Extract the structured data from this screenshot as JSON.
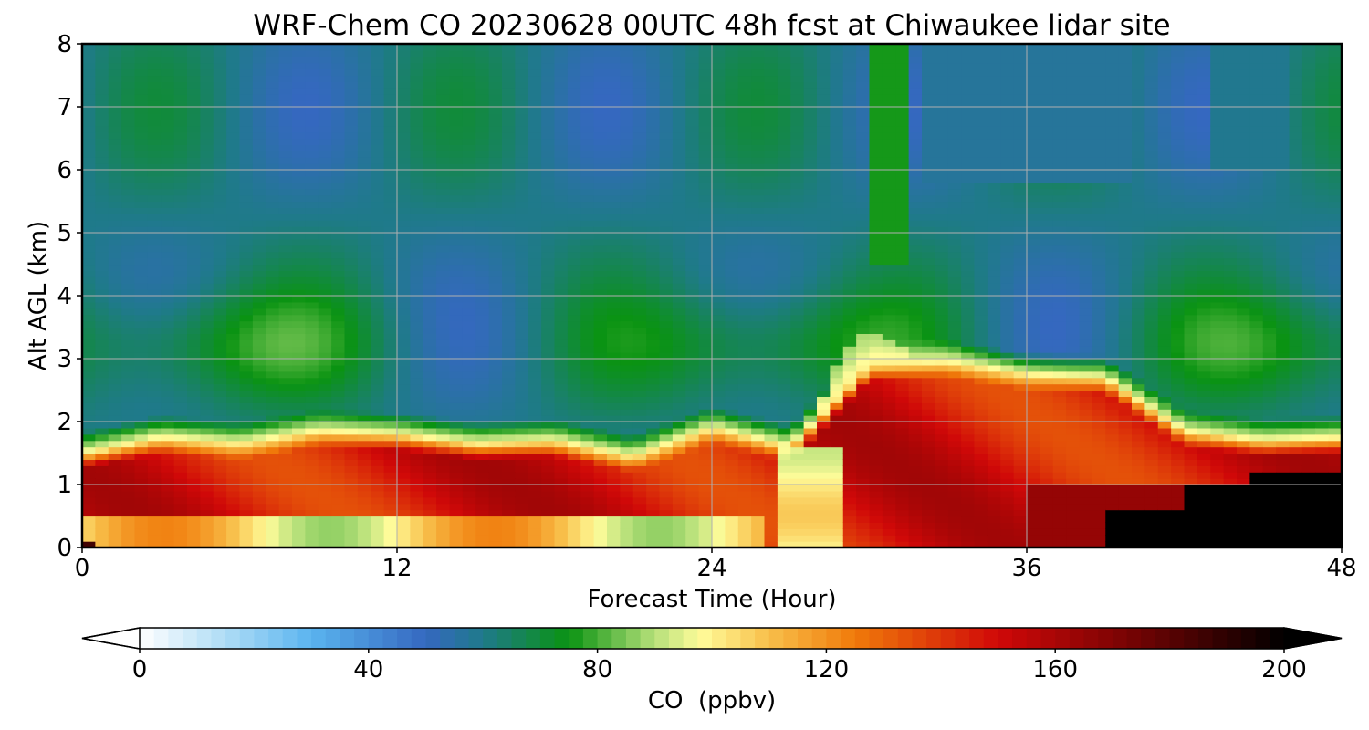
{
  "chart_data": {
    "type": "heatmap",
    "title": "WRF-Chem CO  20230628 00UTC 48h fcst at Chiwaukee lidar site",
    "xlabel": "Forecast Time (Hour)",
    "ylabel": "Alt AGL (km)",
    "xlim": [
      0,
      48
    ],
    "ylim": [
      0,
      8
    ],
    "xticks": [
      0,
      12,
      24,
      36,
      48
    ],
    "yticks": [
      0,
      1,
      2,
      3,
      4,
      5,
      6,
      7,
      8
    ],
    "grid": true,
    "colorbar": {
      "label": "CO  (ppbv)",
      "min": 0,
      "max": 200,
      "ticks": [
        0,
        40,
        80,
        120,
        160,
        200
      ],
      "extend": "both",
      "stops": [
        {
          "v": 0,
          "c": "#ffffff"
        },
        {
          "v": 15,
          "c": "#aedcf5"
        },
        {
          "v": 30,
          "c": "#5ab4ef"
        },
        {
          "v": 50,
          "c": "#3568c0"
        },
        {
          "v": 60,
          "c": "#1f7a8a"
        },
        {
          "v": 75,
          "c": "#0a9312"
        },
        {
          "v": 90,
          "c": "#b6e07a"
        },
        {
          "v": 98,
          "c": "#fffc9a"
        },
        {
          "v": 110,
          "c": "#f8bf4a"
        },
        {
          "v": 125,
          "c": "#f07a0a"
        },
        {
          "v": 150,
          "c": "#d00808"
        },
        {
          "v": 175,
          "c": "#6e0303"
        },
        {
          "v": 200,
          "c": "#000000"
        }
      ]
    },
    "grid_x": [
      0,
      3,
      6,
      9,
      12,
      15,
      18,
      21,
      24,
      27,
      30,
      33,
      36,
      39,
      42,
      45,
      48
    ],
    "grid_y": [
      0,
      0.25,
      0.5,
      0.75,
      1,
      1.25,
      1.5,
      1.75,
      2,
      2.5,
      3,
      3.5,
      4,
      5,
      6,
      7,
      8
    ],
    "boundary_layer_top_km": [
      1.5,
      1.75,
      1.65,
      1.85,
      1.8,
      1.65,
      1.7,
      1.45,
      1.9,
      1.6,
      2.9,
      2.95,
      2.75,
      2.7,
      1.85,
      1.7,
      1.75
    ],
    "plume_top_km": [
      null,
      null,
      null,
      null,
      null,
      null,
      null,
      null,
      null,
      null,
      3.5,
      null,
      null,
      null,
      null,
      null,
      null
    ]
  }
}
